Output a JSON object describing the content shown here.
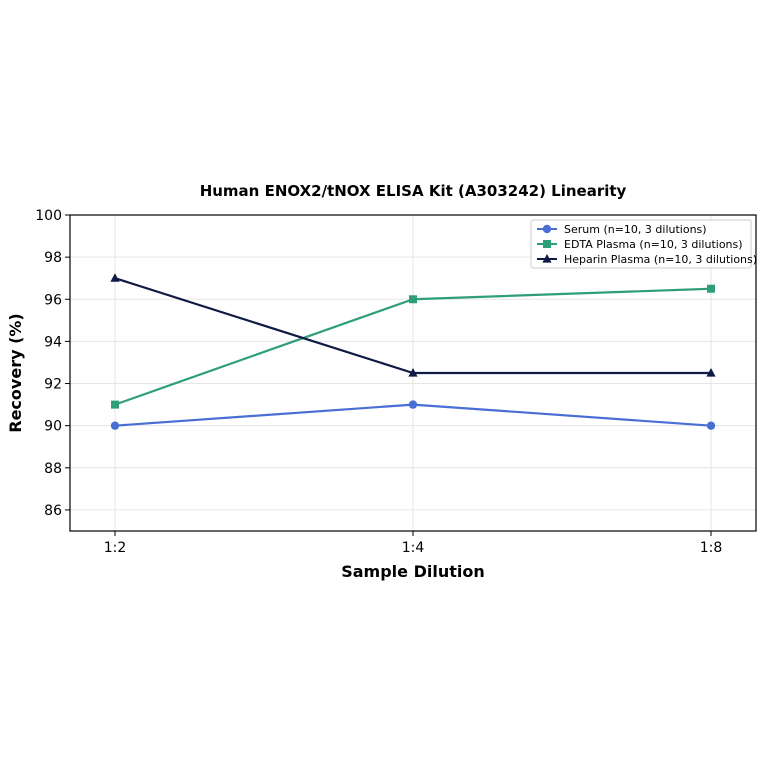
{
  "chart_data": {
    "type": "line",
    "title": "Human ENOX2/tNOX ELISA Kit (A303242) Linearity",
    "xlabel": "Sample Dilution",
    "ylabel": "Recovery (%)",
    "categories": [
      "1:2",
      "1:4",
      "1:8"
    ],
    "ylim": [
      85,
      100
    ],
    "yticks": [
      86,
      88,
      90,
      92,
      94,
      96,
      98,
      100
    ],
    "grid": true,
    "legend_position": "top-right",
    "series": [
      {
        "name": "Serum (n=10, 3 dilutions)",
        "values": [
          90,
          91,
          90
        ],
        "color": "#4a6fd4",
        "marker": "circle"
      },
      {
        "name": "EDTA Plasma (n=10, 3 dilutions)",
        "values": [
          91,
          96,
          96.5
        ],
        "color": "#2e9e7a",
        "marker": "square"
      },
      {
        "name": "Heparin Plasma (n=10, 3 dilutions)",
        "values": [
          97,
          92.5,
          92.5
        ],
        "color": "#0f1a45",
        "marker": "triangle"
      }
    ]
  }
}
